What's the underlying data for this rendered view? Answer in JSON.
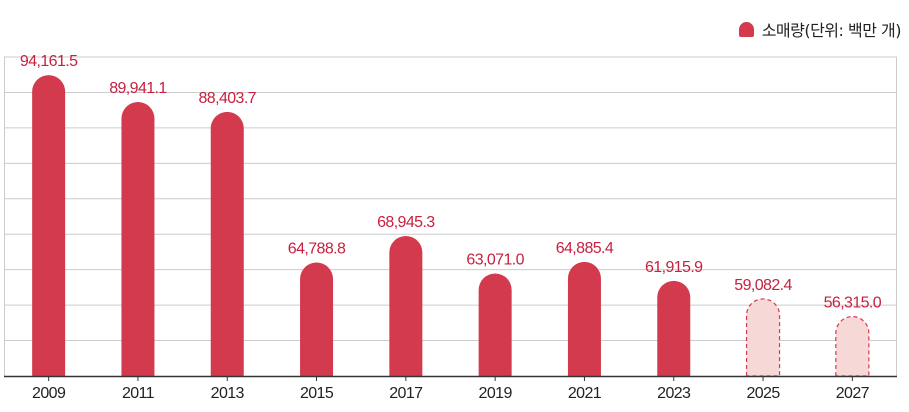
{
  "chart_data": {
    "type": "bar",
    "categories": [
      "2009",
      "2011",
      "2013",
      "2015",
      "2017",
      "2019",
      "2021",
      "2023",
      "2025",
      "2027"
    ],
    "series": [
      {
        "name": "소매량(단위: 백만 개)",
        "values": [
          94161.5,
          89941.1,
          88403.7,
          64788.8,
          68945.3,
          63071.0,
          64885.4,
          61915.9,
          59082.4,
          56315.0
        ],
        "labels": [
          "94,161.5",
          "89,941.1",
          "88,403.7",
          "64,788.8",
          "68,945.3",
          "63,071.0",
          "64,885.4",
          "61,915.9",
          "59,082.4",
          "56,315.0"
        ],
        "forecast": [
          false,
          false,
          false,
          false,
          false,
          false,
          false,
          false,
          true,
          true
        ]
      }
    ],
    "ylim": [
      47000,
      97000
    ],
    "grid": true,
    "legend_position": "top-right",
    "colors": {
      "actual": "#d33a4e",
      "forecast_fill": "#f6d9d6",
      "forecast_stroke": "#d33a4e",
      "label": "#c8203f",
      "grid": "#cccccc",
      "axis": "#333333"
    }
  }
}
